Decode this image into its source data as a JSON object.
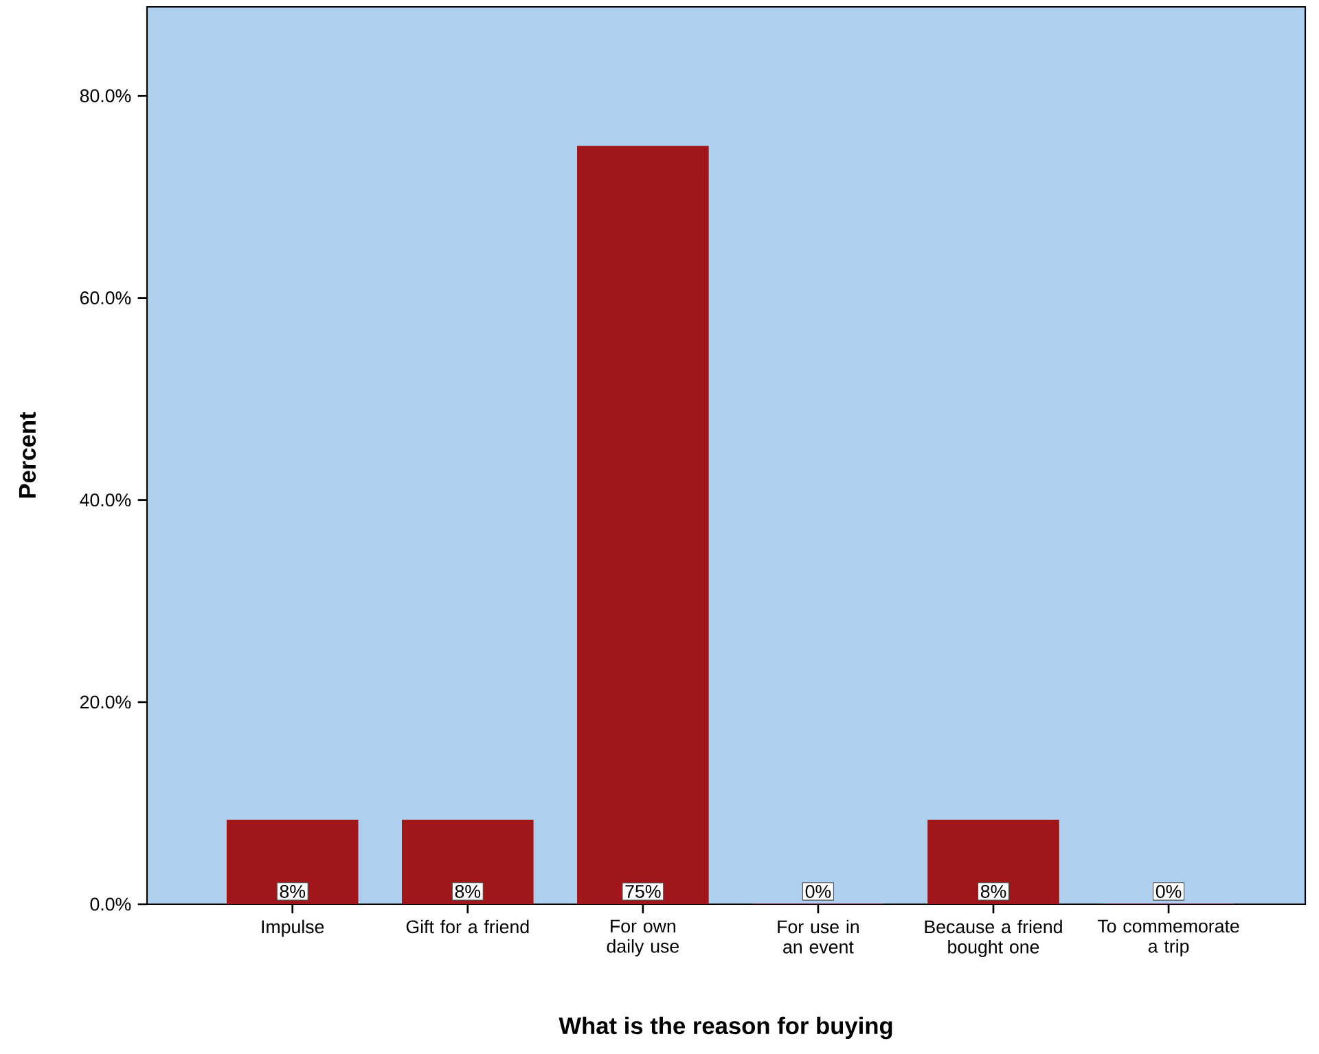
{
  "chart_data": {
    "type": "bar",
    "xlabel": "What is the reason for buying",
    "ylabel": "Percent",
    "categories": [
      "Impulse",
      "Gift for a friend",
      "For own daily use",
      "For use in an event",
      "Because a friend bought one",
      "To commemorate a trip"
    ],
    "values": [
      8.3,
      8.3,
      75,
      0,
      8.3,
      0
    ],
    "value_labels": [
      "8%",
      "8%",
      "75%",
      "0%",
      "8%",
      "0%"
    ],
    "color": "#a0161b",
    "ylim": [
      0,
      88.8
    ],
    "yticks": [
      {
        "value": 0,
        "label": "0.0%"
      },
      {
        "value": 20,
        "label": "20.0%"
      },
      {
        "value": 40,
        "label": "40.0%"
      },
      {
        "value": 60,
        "label": "60.0%"
      },
      {
        "value": 80,
        "label": "80.0%"
      }
    ],
    "grid": false
  }
}
